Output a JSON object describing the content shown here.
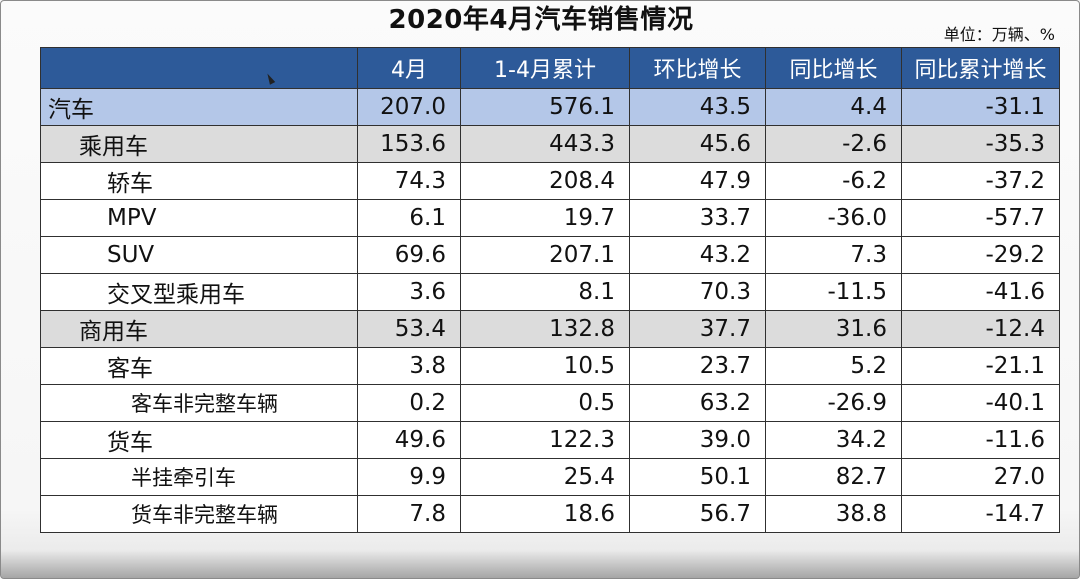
{
  "title": "2020年4月汽车销售情况",
  "unit": "单位：万辆、%",
  "table": {
    "headers": [
      "",
      "4月",
      "1-4月累计",
      "环比增长",
      "同比增长",
      "同比累计增长"
    ],
    "rows": [
      {
        "level": 0,
        "label": "汽车",
        "values": [
          "207.0",
          "576.1",
          "43.5",
          "4.4",
          "-31.1"
        ]
      },
      {
        "level": 1,
        "label": "乘用车",
        "values": [
          "153.6",
          "443.3",
          "45.6",
          "-2.6",
          "-35.3"
        ]
      },
      {
        "level": 2,
        "label": "轿车",
        "values": [
          "74.3",
          "208.4",
          "47.9",
          "-6.2",
          "-37.2"
        ]
      },
      {
        "level": 2,
        "label": "MPV",
        "values": [
          "6.1",
          "19.7",
          "33.7",
          "-36.0",
          "-57.7"
        ]
      },
      {
        "level": 2,
        "label": "SUV",
        "values": [
          "69.6",
          "207.1",
          "43.2",
          "7.3",
          "-29.2"
        ]
      },
      {
        "level": 2,
        "label": "交叉型乘用车",
        "values": [
          "3.6",
          "8.1",
          "70.3",
          "-11.5",
          "-41.6"
        ]
      },
      {
        "level": 1,
        "label": "商用车",
        "values": [
          "53.4",
          "132.8",
          "37.7",
          "31.6",
          "-12.4"
        ]
      },
      {
        "level": 2,
        "label": "客车",
        "values": [
          "3.8",
          "10.5",
          "23.7",
          "5.2",
          "-21.1"
        ]
      },
      {
        "level": 3,
        "label": "客车非完整车辆",
        "values": [
          "0.2",
          "0.5",
          "63.2",
          "-26.9",
          "-40.1"
        ]
      },
      {
        "level": 2,
        "label": "货车",
        "values": [
          "49.6",
          "122.3",
          "39.0",
          "34.2",
          "-11.6"
        ]
      },
      {
        "level": 3,
        "label": "半挂牵引车",
        "values": [
          "9.9",
          "25.4",
          "50.1",
          "82.7",
          "27.0"
        ]
      },
      {
        "level": 3,
        "label": "货车非完整车辆",
        "values": [
          "7.8",
          "18.6",
          "56.7",
          "38.8",
          "-14.7"
        ]
      }
    ]
  },
  "colors": {
    "header_bg": "#2d5a99",
    "total_row_bg": "#b4c7e8",
    "category_row_bg": "#dcdcdc"
  }
}
